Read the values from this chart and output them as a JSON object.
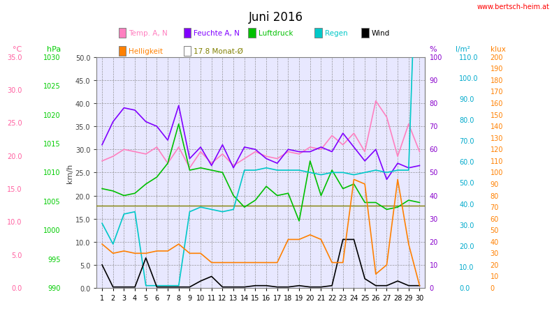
{
  "title": "Juni 2016",
  "watermark": "www.bertsch-heim.at",
  "days": [
    1,
    2,
    3,
    4,
    5,
    6,
    7,
    8,
    9,
    10,
    11,
    12,
    13,
    14,
    15,
    16,
    17,
    18,
    19,
    20,
    21,
    22,
    23,
    24,
    25,
    26,
    27,
    28,
    29,
    30
  ],
  "temp": [
    27.5,
    28.5,
    30.0,
    29.5,
    29.0,
    30.5,
    27.0,
    30.5,
    26.0,
    29.5,
    27.0,
    29.0,
    26.5,
    28.0,
    29.5,
    28.5,
    28.0,
    29.5,
    29.0,
    30.5,
    30.0,
    33.0,
    31.0,
    33.5,
    29.5,
    40.5,
    37.0,
    28.5,
    35.5,
    29.5
  ],
  "feuchte": [
    31.0,
    36.0,
    39.0,
    38.5,
    36.0,
    35.0,
    32.0,
    39.5,
    28.0,
    30.5,
    26.5,
    31.0,
    26.0,
    30.5,
    30.0,
    28.0,
    27.0,
    30.0,
    29.5,
    29.5,
    30.5,
    29.5,
    33.5,
    30.5,
    27.5,
    30.0,
    23.5,
    27.0,
    26.0,
    26.5
  ],
  "luftdruck": [
    21.5,
    21.0,
    20.0,
    20.5,
    22.5,
    24.0,
    27.0,
    35.5,
    25.5,
    26.0,
    25.5,
    25.0,
    20.0,
    17.5,
    19.0,
    22.0,
    20.0,
    20.5,
    14.5,
    27.5,
    20.0,
    25.5,
    21.5,
    22.5,
    18.5,
    18.5,
    17.0,
    17.5,
    19.0,
    18.5
  ],
  "regen": [
    14.0,
    9.5,
    16.0,
    16.5,
    0.5,
    0.5,
    0.5,
    0.5,
    16.5,
    17.5,
    17.0,
    16.5,
    17.0,
    25.5,
    25.5,
    26.0,
    25.5,
    25.5,
    25.5,
    25.0,
    24.5,
    25.0,
    25.0,
    24.5,
    25.0,
    25.5,
    25.0,
    25.5,
    25.5,
    94.0
  ],
  "wind": [
    5.0,
    0.2,
    0.2,
    0.2,
    6.5,
    0.2,
    0.2,
    0.2,
    0.2,
    1.5,
    2.5,
    0.2,
    0.2,
    0.2,
    0.5,
    0.5,
    0.2,
    0.2,
    0.5,
    0.2,
    0.2,
    0.5,
    10.5,
    10.5,
    2.0,
    0.5,
    0.5,
    1.5,
    0.5,
    0.5
  ],
  "helligkeit": [
    9.5,
    7.5,
    8.0,
    7.5,
    7.5,
    8.0,
    8.0,
    9.5,
    7.5,
    7.5,
    5.5,
    5.5,
    5.5,
    5.5,
    5.5,
    5.5,
    5.5,
    10.5,
    10.5,
    11.5,
    10.5,
    5.5,
    5.5,
    23.5,
    22.5,
    3.0,
    5.0,
    23.5,
    9.5,
    0.5
  ],
  "monat_avg": 17.8,
  "temp_color": "#ff80c0",
  "feuchte_color": "#8000ff",
  "luftdruck_color": "#00c000",
  "regen_color": "#00c8c8",
  "wind_color": "#000000",
  "helligkeit_color": "#ff8000",
  "monat_color": "#808000",
  "left_temp_color": "#ff60a0",
  "left_hpa_color": "#00cc00",
  "left_kmh_color": "#404040",
  "right_pct_color": "#8800cc",
  "right_lm2_color": "#00aacc",
  "right_klux_color": "#ff8000",
  "bg_color": "#ffffff",
  "plot_bg": "#e8e8ff",
  "grid_color": "#808080",
  "xlim": [
    0.5,
    30.5
  ],
  "ylim_main": [
    0.0,
    50.0
  ],
  "main_yticks": [
    0.0,
    5.0,
    10.0,
    15.0,
    20.0,
    25.0,
    30.0,
    35.0,
    40.0,
    45.0,
    50.0
  ],
  "temp_c_ticks": [
    0.0,
    5.0,
    10.0,
    15.0,
    20.0,
    25.0,
    30.0,
    35.0
  ],
  "hpa_ticks": [
    990,
    995,
    1000,
    1005,
    1010,
    1015,
    1020,
    1025,
    1030
  ],
  "pct_ticks": [
    0,
    10,
    20,
    30,
    40,
    50,
    60,
    70,
    80,
    90,
    100
  ],
  "lm2_ticks": [
    0.0,
    10.0,
    20.0,
    30.0,
    40.0,
    50.0,
    60.0,
    70.0,
    80.0,
    90.0,
    100.0,
    110.0
  ],
  "klux_ticks": [
    0,
    10,
    20,
    30,
    40,
    50,
    60,
    70,
    80,
    90,
    100,
    110,
    120,
    130,
    140,
    150,
    160,
    170,
    180,
    190,
    200
  ],
  "temp_c_range": [
    0.0,
    35.0
  ],
  "hpa_range": [
    990,
    1030
  ],
  "pct_range": [
    0,
    100
  ],
  "lm2_range": [
    0.0,
    110.0
  ],
  "klux_range": [
    0,
    200
  ]
}
